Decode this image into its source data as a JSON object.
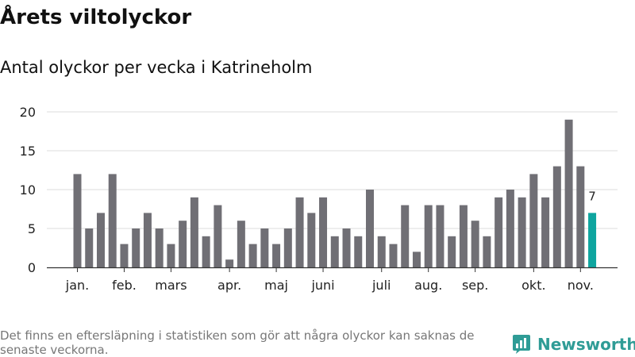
{
  "header": {
    "title": "Årets viltolyckor",
    "subtitle": "Antal olyckor per vecka i Katrineholm"
  },
  "footer": {
    "note": "Det finns en eftersläpning i statistiken som gör att några olyckor kan saknas de senaste veckorna.",
    "brand": "Newsworthy"
  },
  "colors": {
    "bar": "#706f75",
    "highlight": "#0ea59f",
    "grid": "#dcdcdc",
    "brand": "#2f9c96"
  },
  "chart_data": {
    "type": "bar",
    "title": "Antal olyckor per vecka i Katrineholm",
    "xlabel": "",
    "ylabel": "",
    "ylim": [
      0,
      20
    ],
    "yticks": [
      0,
      5,
      10,
      15,
      20
    ],
    "grid": true,
    "values": [
      12,
      5,
      7,
      12,
      3,
      5,
      7,
      5,
      3,
      6,
      9,
      4,
      8,
      1,
      6,
      3,
      5,
      3,
      5,
      9,
      7,
      9,
      4,
      5,
      4,
      10,
      4,
      3,
      8,
      2,
      8,
      8,
      4,
      8,
      6,
      4,
      9,
      10,
      9,
      12,
      9,
      13,
      19,
      13,
      7
    ],
    "month_labels": [
      {
        "label": "jan.",
        "week": 1
      },
      {
        "label": "feb.",
        "week": 5
      },
      {
        "label": "mars",
        "week": 9
      },
      {
        "label": "apr.",
        "week": 14
      },
      {
        "label": "maj",
        "week": 18
      },
      {
        "label": "juni",
        "week": 22
      },
      {
        "label": "juli",
        "week": 27
      },
      {
        "label": "aug.",
        "week": 31
      },
      {
        "label": "sep.",
        "week": 35
      },
      {
        "label": "okt.",
        "week": 40
      },
      {
        "label": "nov.",
        "week": 44
      }
    ],
    "highlight_last": true,
    "annotation": {
      "week": 45,
      "text": "7"
    }
  }
}
